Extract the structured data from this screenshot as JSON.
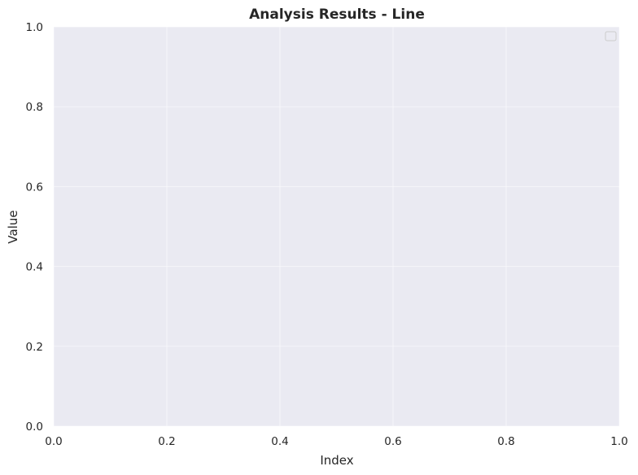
{
  "chart_data": {
    "type": "line",
    "title": "Analysis Results - Line",
    "xlabel": "Index",
    "ylabel": "Value",
    "xlim": [
      0,
      1
    ],
    "ylim": [
      0,
      1
    ],
    "x_ticks": [
      "0.0",
      "0.2",
      "0.4",
      "0.6",
      "0.8",
      "1.0"
    ],
    "y_ticks": [
      "0.0",
      "0.2",
      "0.4",
      "0.6",
      "0.8",
      "1.0"
    ],
    "series": [],
    "grid": true,
    "legend": {
      "placement": "top-right",
      "entries": []
    },
    "colors": {
      "plot_background": "#EAEAF2",
      "grid": "#FFFFFF",
      "text": "#262626",
      "legend_border": "#CCCCCC"
    }
  }
}
